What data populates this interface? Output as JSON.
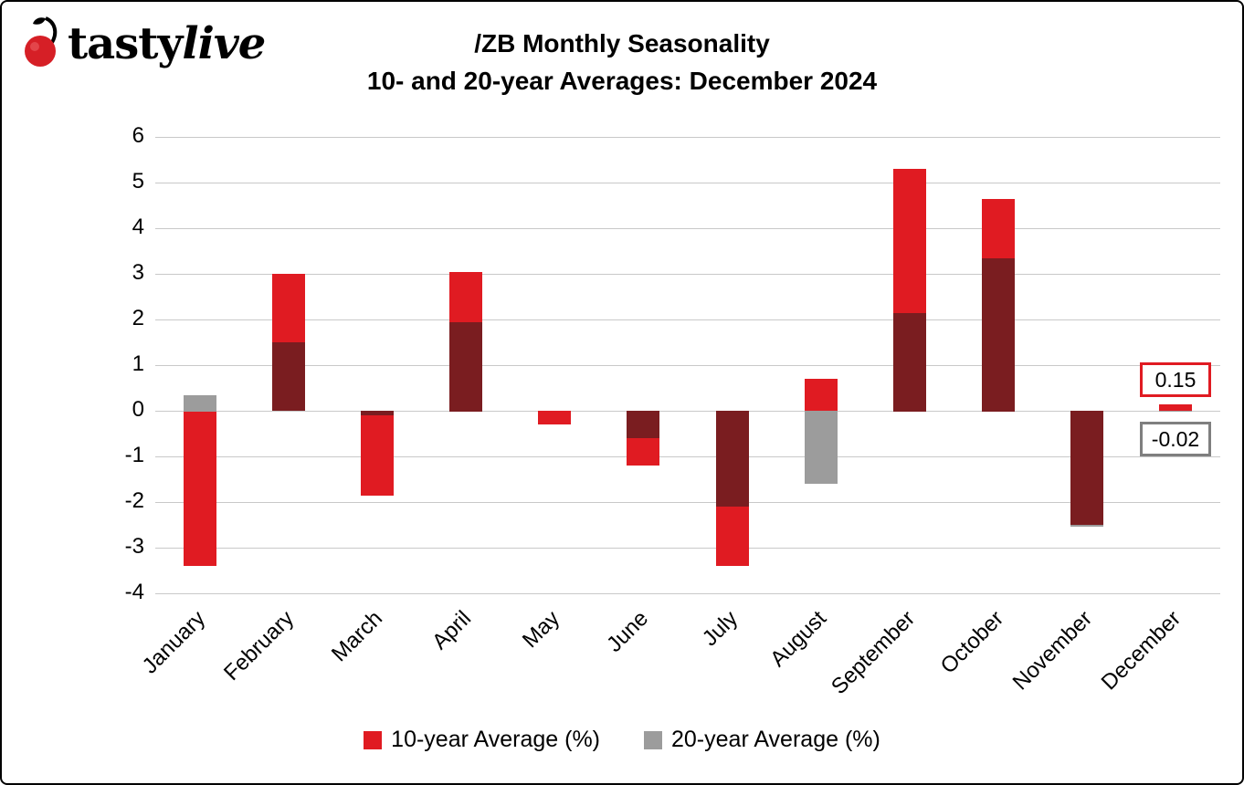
{
  "logo": {
    "brand_regular": "tasty",
    "brand_italic": "live"
  },
  "title": {
    "line1": "/ZB Monthly Seasonality",
    "line2": "10- and 20-year Averages: December 2024"
  },
  "legend": [
    {
      "label": "10-year Average (%)",
      "color": "#e01b22"
    },
    {
      "label": "20-year Average (%)",
      "color": "#9c9c9c"
    }
  ],
  "annotations": [
    {
      "label": "0.15",
      "border_color": "#e01b22",
      "series": "10-year Average (%)",
      "month": "December"
    },
    {
      "label": "-0.02",
      "border_color": "#7f7f7f",
      "series": "20-year Average (%)",
      "month": "December"
    }
  ],
  "chart_data": {
    "type": "bar",
    "title": "/ZB Monthly Seasonality — 10- and 20-year Averages: December 2024",
    "categories": [
      "January",
      "February",
      "March",
      "April",
      "May",
      "June",
      "July",
      "August",
      "September",
      "October",
      "November",
      "December"
    ],
    "series": [
      {
        "name": "10-year Average (%)",
        "color": "#e01b22",
        "values": [
          -3.4,
          3.0,
          -1.85,
          3.05,
          -0.3,
          -1.2,
          -3.4,
          0.7,
          5.3,
          4.65,
          -2.5,
          0.15
        ]
      },
      {
        "name": "20-year Average (%)",
        "color": "#9c9c9c",
        "values": [
          0.35,
          1.5,
          -0.1,
          1.95,
          0.0,
          -0.6,
          -2.1,
          -1.6,
          2.15,
          3.35,
          -2.55,
          -0.02
        ]
      }
    ],
    "overlap_color": "#7a1d20",
    "xlabel": "",
    "ylabel": "",
    "ylim": [
      -4,
      6
    ],
    "ytick_step": 1,
    "grid": true,
    "legend_position": "bottom"
  }
}
